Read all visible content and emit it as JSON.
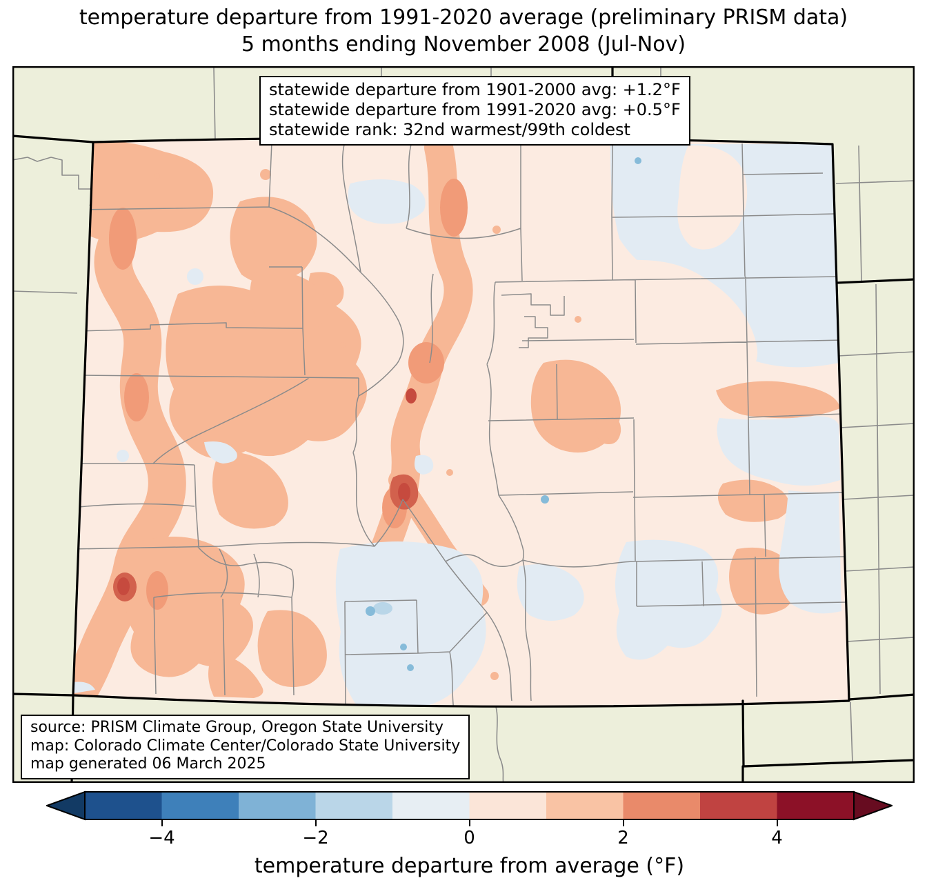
{
  "title": {
    "line1": "temperature departure from 1991-2020 average (preliminary PRISM data)",
    "line2": "5 months ending November 2008 (Jul-Nov)"
  },
  "stats_box": {
    "lines": [
      "statewide departure from 1901-2000 avg: +1.2°F",
      "statewide departure from 1991-2020 avg: +0.5°F",
      "statewide rank: 32nd warmest/99th coldest"
    ]
  },
  "source_box": {
    "lines": [
      "source: PRISM Climate Group, Oregon State University",
      "map: Colorado Climate Center/Colorado State University",
      "map generated 06 March 2025"
    ]
  },
  "colorbar": {
    "label": "temperature departure from average (°F)",
    "tick_labels": [
      "−4",
      "−2",
      "0",
      "2",
      "4"
    ],
    "tick_values": [
      -4,
      -2,
      0,
      2,
      4
    ],
    "range": [
      -5,
      5
    ],
    "segment_colors": [
      "#1e518d",
      "#3e80ba",
      "#7fb2d6",
      "#bad6e8",
      "#e7eef3",
      "#fbe5d8",
      "#f9c3a4",
      "#e98a6a",
      "#c04341",
      "#8c1127"
    ],
    "under_color": "#123a64",
    "over_color": "#670c20",
    "outline_color": "#000000"
  },
  "map": {
    "colors": {
      "outside_fill": "#edefdb",
      "base": "#fcebe1",
      "warm": "#f7b795",
      "warm2": "#f19b78",
      "hot": "#c64a3e",
      "hot2": "#d2614d",
      "cool": "#e2ebf3",
      "cool_mid": "#b9d6e8",
      "cool2": "#86bbd9",
      "county_line": "#8b8b8b",
      "state_border": "#000000",
      "frame": "#000000"
    }
  }
}
